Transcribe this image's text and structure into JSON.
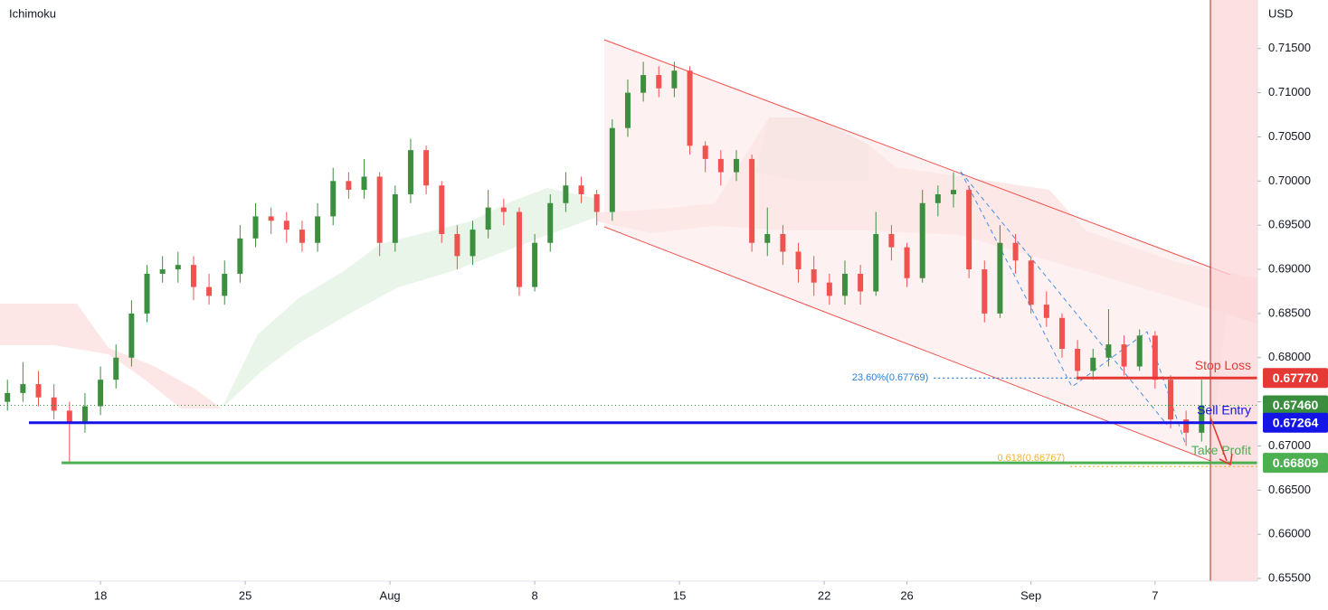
{
  "chart_data": {
    "type": "candlestick",
    "title": "Ichimoku",
    "y_axis_label": "USD",
    "xlim": [
      -4.86,
      55.95
    ],
    "ylim": [
      0.6547,
      0.7205
    ],
    "xticks": [
      {
        "value": 0,
        "label": "18"
      },
      {
        "value": 7,
        "label": "25"
      },
      {
        "value": 14,
        "label": "Aug"
      },
      {
        "value": 21,
        "label": "8"
      },
      {
        "value": 28,
        "label": "15"
      },
      {
        "value": 35,
        "label": "22"
      },
      {
        "value": 39,
        "label": "26"
      },
      {
        "value": 45,
        "label": "Sep"
      },
      {
        "value": 51,
        "label": "7"
      }
    ],
    "yticks": [
      {
        "value": 0.655,
        "label": "0.65500"
      },
      {
        "value": 0.66,
        "label": "0.66000"
      },
      {
        "value": 0.665,
        "label": "0.66500"
      },
      {
        "value": 0.67,
        "label": "0.67000"
      },
      {
        "value": 0.675,
        "label": "0.67500"
      },
      {
        "value": 0.68,
        "label": "0.68000"
      },
      {
        "value": 0.685,
        "label": "0.68500"
      },
      {
        "value": 0.69,
        "label": "0.69000"
      },
      {
        "value": 0.695,
        "label": "0.69500"
      },
      {
        "value": 0.7,
        "label": "0.70000"
      },
      {
        "value": 0.705,
        "label": "0.70500"
      },
      {
        "value": 0.71,
        "label": "0.71000"
      },
      {
        "value": 0.715,
        "label": "0.71500"
      }
    ],
    "grid": false,
    "up_color": "#3d8f40",
    "down_color": "#ef5350",
    "candles": [
      [
        -4.5,
        0.675,
        0.6775,
        0.674,
        0.676
      ],
      [
        -3.75,
        0.676,
        0.6795,
        0.675,
        0.677
      ],
      [
        -3.0,
        0.677,
        0.6785,
        0.6745,
        0.6755
      ],
      [
        -2.25,
        0.6755,
        0.677,
        0.673,
        0.674
      ],
      [
        -1.5,
        0.674,
        0.675,
        0.6682,
        0.6725
      ],
      [
        -0.75,
        0.6725,
        0.676,
        0.6715,
        0.6745
      ],
      [
        0,
        0.6745,
        0.679,
        0.6735,
        0.6775
      ],
      [
        0.75,
        0.6775,
        0.6815,
        0.6765,
        0.68
      ],
      [
        1.5,
        0.68,
        0.6865,
        0.679,
        0.685
      ],
      [
        2.25,
        0.685,
        0.6905,
        0.684,
        0.6895
      ],
      [
        3.0,
        0.6895,
        0.6915,
        0.6885,
        0.69
      ],
      [
        3.75,
        0.69,
        0.692,
        0.6885,
        0.6905
      ],
      [
        4.5,
        0.6905,
        0.6915,
        0.6865,
        0.688
      ],
      [
        5.25,
        0.688,
        0.6895,
        0.686,
        0.687
      ],
      [
        6.0,
        0.687,
        0.691,
        0.686,
        0.6895
      ],
      [
        6.75,
        0.6895,
        0.695,
        0.6885,
        0.6935
      ],
      [
        7.5,
        0.6935,
        0.6975,
        0.6925,
        0.696
      ],
      [
        8.25,
        0.696,
        0.697,
        0.694,
        0.6955
      ],
      [
        9.0,
        0.6955,
        0.6965,
        0.693,
        0.6945
      ],
      [
        9.75,
        0.6945,
        0.6955,
        0.692,
        0.693
      ],
      [
        10.5,
        0.693,
        0.6975,
        0.692,
        0.696
      ],
      [
        11.25,
        0.696,
        0.7015,
        0.695,
        0.7
      ],
      [
        12.0,
        0.7,
        0.701,
        0.698,
        0.699
      ],
      [
        12.75,
        0.699,
        0.7025,
        0.698,
        0.7005
      ],
      [
        13.5,
        0.7005,
        0.701,
        0.6915,
        0.693
      ],
      [
        14.25,
        0.693,
        0.6995,
        0.692,
        0.6985
      ],
      [
        15.0,
        0.6985,
        0.7048,
        0.6975,
        0.7035
      ],
      [
        15.75,
        0.7035,
        0.704,
        0.6985,
        0.6995
      ],
      [
        16.5,
        0.6995,
        0.7,
        0.693,
        0.694
      ],
      [
        17.25,
        0.694,
        0.695,
        0.69,
        0.6915
      ],
      [
        18.0,
        0.6915,
        0.6955,
        0.6905,
        0.6945
      ],
      [
        18.75,
        0.6945,
        0.699,
        0.6935,
        0.697
      ],
      [
        19.5,
        0.697,
        0.698,
        0.695,
        0.6965
      ],
      [
        20.25,
        0.6965,
        0.697,
        0.687,
        0.688
      ],
      [
        21.0,
        0.688,
        0.694,
        0.6875,
        0.693
      ],
      [
        21.75,
        0.693,
        0.6985,
        0.692,
        0.6975
      ],
      [
        22.5,
        0.6975,
        0.701,
        0.6965,
        0.6995
      ],
      [
        23.25,
        0.6995,
        0.7005,
        0.6975,
        0.6985
      ],
      [
        24.0,
        0.6985,
        0.699,
        0.695,
        0.6965
      ],
      [
        24.75,
        0.6965,
        0.707,
        0.6955,
        0.706
      ],
      [
        25.5,
        0.706,
        0.7115,
        0.705,
        0.71
      ],
      [
        26.25,
        0.71,
        0.7135,
        0.709,
        0.712
      ],
      [
        27.0,
        0.712,
        0.713,
        0.7095,
        0.7105
      ],
      [
        27.75,
        0.7105,
        0.7135,
        0.7095,
        0.7125
      ],
      [
        28.5,
        0.7125,
        0.713,
        0.703,
        0.704
      ],
      [
        29.25,
        0.704,
        0.7045,
        0.701,
        0.7025
      ],
      [
        30.0,
        0.7025,
        0.7035,
        0.6995,
        0.701
      ],
      [
        30.75,
        0.701,
        0.7035,
        0.7,
        0.7025
      ],
      [
        31.5,
        0.7025,
        0.703,
        0.692,
        0.693
      ],
      [
        32.25,
        0.693,
        0.697,
        0.6915,
        0.694
      ],
      [
        33.0,
        0.694,
        0.695,
        0.6905,
        0.692
      ],
      [
        33.75,
        0.692,
        0.693,
        0.6885,
        0.69
      ],
      [
        34.5,
        0.69,
        0.6915,
        0.687,
        0.6885
      ],
      [
        35.25,
        0.6885,
        0.6895,
        0.686,
        0.687
      ],
      [
        36.0,
        0.687,
        0.691,
        0.686,
        0.6895
      ],
      [
        36.75,
        0.6895,
        0.6905,
        0.686,
        0.6875
      ],
      [
        37.5,
        0.6875,
        0.6965,
        0.687,
        0.694
      ],
      [
        38.25,
        0.694,
        0.695,
        0.691,
        0.6925
      ],
      [
        39.0,
        0.6925,
        0.693,
        0.688,
        0.689
      ],
      [
        39.75,
        0.689,
        0.699,
        0.6885,
        0.6975
      ],
      [
        40.5,
        0.6975,
        0.6995,
        0.696,
        0.6985
      ],
      [
        41.25,
        0.6985,
        0.701,
        0.697,
        0.699
      ],
      [
        42.0,
        0.699,
        0.6995,
        0.689,
        0.69
      ],
      [
        42.75,
        0.69,
        0.691,
        0.684,
        0.685
      ],
      [
        43.5,
        0.685,
        0.695,
        0.6845,
        0.693
      ],
      [
        44.25,
        0.693,
        0.694,
        0.6895,
        0.691
      ],
      [
        45.0,
        0.691,
        0.6915,
        0.685,
        0.686
      ],
      [
        45.75,
        0.686,
        0.6875,
        0.6835,
        0.6845
      ],
      [
        46.5,
        0.6845,
        0.685,
        0.68,
        0.681
      ],
      [
        47.25,
        0.681,
        0.682,
        0.6775,
        0.6785
      ],
      [
        48.0,
        0.6785,
        0.681,
        0.6775,
        0.68
      ],
      [
        48.75,
        0.68,
        0.6855,
        0.679,
        0.6815
      ],
      [
        49.5,
        0.6815,
        0.6825,
        0.678,
        0.679
      ],
      [
        50.25,
        0.679,
        0.6832,
        0.6785,
        0.6825
      ],
      [
        51.0,
        0.6825,
        0.683,
        0.6765,
        0.6775
      ],
      [
        51.75,
        0.6775,
        0.678,
        0.672,
        0.673
      ],
      [
        52.5,
        0.673,
        0.674,
        0.67,
        0.6715
      ],
      [
        53.25,
        0.6715,
        0.6775,
        0.6705,
        0.6746
      ]
    ],
    "levels": [
      {
        "name": "Stop Loss",
        "value": 0.6777,
        "label": "0.67770",
        "color": "#e53935",
        "x_start": 47.2
      },
      {
        "value": 0.6746,
        "label": "0.67460",
        "color": "#388e3c",
        "style": "dotted",
        "x_start": -4.86
      },
      {
        "name": "Sell Entry",
        "value": 0.67264,
        "label": "0.67264",
        "color": "#1414e6",
        "x_start": -3.46
      },
      {
        "name": "Take Profit",
        "value": 0.66809,
        "label": "0.66809",
        "color": "#4caf50",
        "x_start": -1.88
      }
    ],
    "fib_levels": [
      {
        "label": "23.60%(0.67769)",
        "value": 0.67769,
        "color": "#2f7fd6",
        "x_start": 40.3
      },
      {
        "label": "0.618(0.66767)",
        "value": 0.66767,
        "color": "#f2b233",
        "x_start": 46.9
      }
    ]
  }
}
